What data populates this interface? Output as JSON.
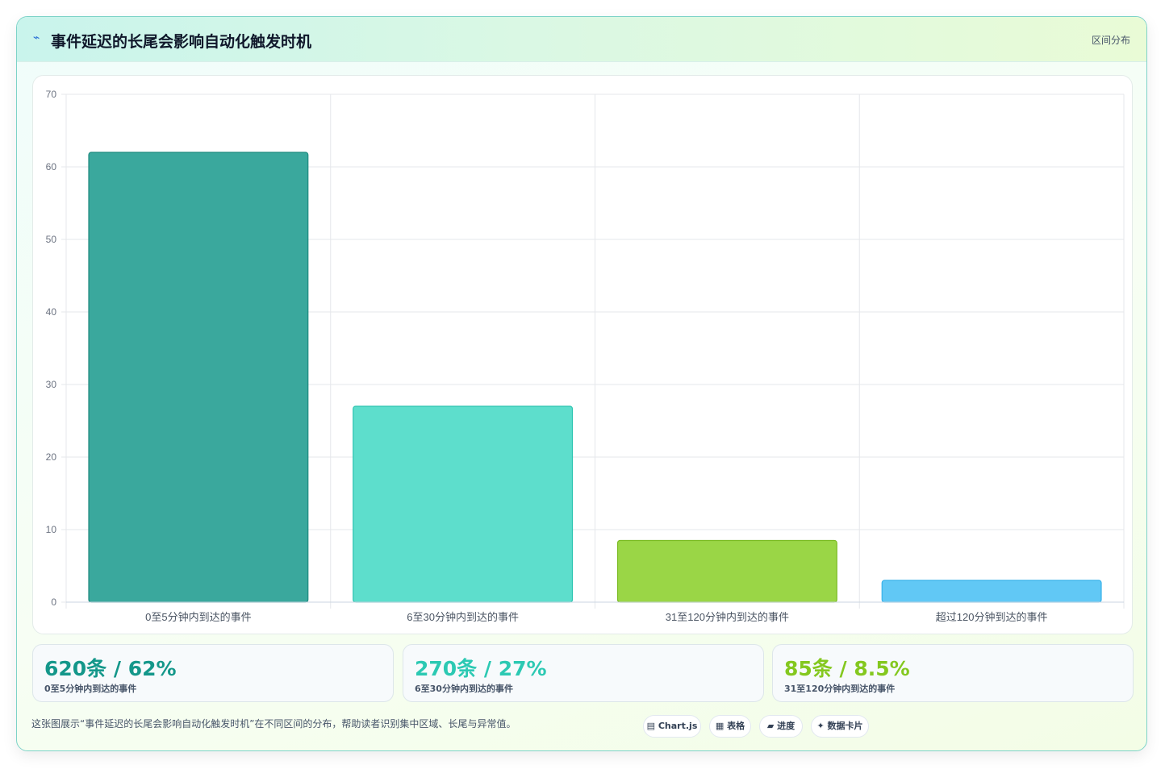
{
  "header": {
    "icon": "trend-line-icon",
    "icon_glyph": "⌁",
    "title": "事件延迟的长尾会影响自动化触发时机",
    "tag": "区间分布"
  },
  "chart_data": {
    "type": "bar",
    "categories": [
      "0至5分钟内到达的事件",
      "6至30分钟内到达的事件",
      "31至120分钟内到达的事件",
      "超过120分钟到达的事件"
    ],
    "values": [
      62,
      27,
      8.5,
      3
    ],
    "colors": [
      "#3aa89d",
      "#5ddecc",
      "#9ad646",
      "#61c8f5"
    ],
    "border_colors": [
      "#1f8a7f",
      "#2cc4b0",
      "#7bbb24",
      "#38b2ea"
    ],
    "ylim": [
      0,
      70
    ],
    "yticks": [
      0,
      10,
      20,
      30,
      40,
      50,
      60,
      70
    ],
    "grid": true,
    "title": "",
    "xlabel": "",
    "ylabel": ""
  },
  "stats": [
    {
      "value": "620条 / 62%",
      "label": "0至5分钟内到达的事件",
      "color": "#14978a"
    },
    {
      "value": "270条 / 27%",
      "label": "6至30分钟内到达的事件",
      "color": "#2cc9b3"
    },
    {
      "value": "85条 / 8.5%",
      "label": "31至120分钟内到达的事件",
      "color": "#84c81f"
    }
  ],
  "caption": "这张图展示“事件延迟的长尾会影响自动化触发时机”在不同区间的分布，帮助读者识别集中区域、长尾与异常值。",
  "chips": [
    {
      "icon": "chart-icon",
      "glyph": "▤",
      "label": "Chart.js"
    },
    {
      "icon": "table-icon",
      "glyph": "▦",
      "label": "表格"
    },
    {
      "icon": "progress-icon",
      "glyph": "▰",
      "label": "进度"
    },
    {
      "icon": "sparkle-icon",
      "glyph": "✦",
      "label": "数据卡片"
    }
  ]
}
